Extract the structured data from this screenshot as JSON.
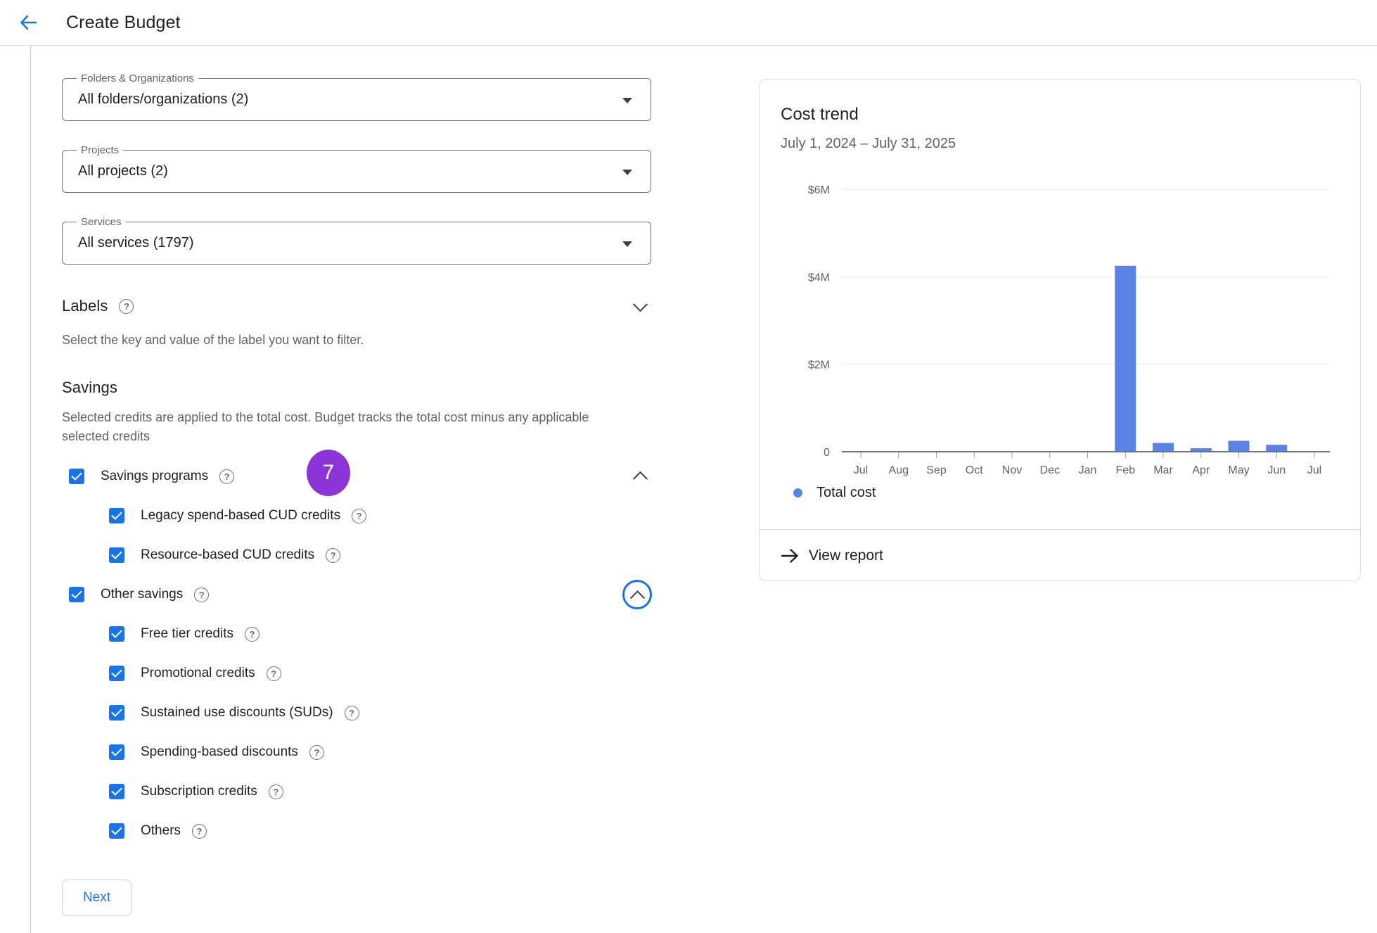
{
  "header": {
    "title": "Create Budget"
  },
  "colors": {
    "accent": "#1a73e8",
    "bar": "#5b82e5",
    "badge": "#8d34d8"
  },
  "icons": {
    "help_glyph": "?"
  },
  "filters": {
    "folders": {
      "label": "Folders & Organizations",
      "value": "All folders/organizations (2)"
    },
    "projects": {
      "label": "Projects",
      "value": "All projects (2)"
    },
    "services": {
      "label": "Services",
      "value": "All services (1797)"
    }
  },
  "labels_section": {
    "heading": "Labels",
    "description": "Select the key and value of the label you want to filter."
  },
  "savings_section": {
    "heading": "Savings",
    "description": "Selected credits are applied to the total cost. Budget tracks the total cost minus any applicable selected credits",
    "badge_count": "7",
    "rows": [
      {
        "label": "Savings programs",
        "checked": true,
        "level": 0
      },
      {
        "label": "Legacy spend-based CUD credits",
        "checked": true,
        "level": 1
      },
      {
        "label": "Resource-based CUD credits",
        "checked": true,
        "level": 1
      },
      {
        "label": "Other savings",
        "checked": true,
        "level": 0
      },
      {
        "label": "Free tier credits",
        "checked": true,
        "level": 1
      },
      {
        "label": "Promotional credits",
        "checked": true,
        "level": 1
      },
      {
        "label": "Sustained use discounts (SUDs)",
        "checked": true,
        "level": 1
      },
      {
        "label": "Spending-based discounts",
        "checked": true,
        "level": 1
      },
      {
        "label": "Subscription credits",
        "checked": true,
        "level": 1
      },
      {
        "label": "Others",
        "checked": true,
        "level": 1
      }
    ]
  },
  "next_button": {
    "label": "Next"
  },
  "chart_card": {
    "title": "Cost trend",
    "subtitle": "July 1, 2024 – July 31, 2025",
    "legend": "Total cost",
    "view_report": "View report"
  },
  "chart_data": {
    "type": "bar",
    "title": "Cost trend",
    "subtitle": "July 1, 2024 – July 31, 2025",
    "categories": [
      "Jul",
      "Aug",
      "Sep",
      "Oct",
      "Nov",
      "Dec",
      "Jan",
      "Feb",
      "Mar",
      "Apr",
      "May",
      "Jun",
      "Jul"
    ],
    "values": [
      0,
      0,
      0,
      0,
      0,
      0,
      0,
      4.25,
      0.2,
      0.08,
      0.25,
      0.16,
      0
    ],
    "unit": "$M",
    "xlabel": "",
    "ylabel": "",
    "ylim": [
      0,
      6
    ],
    "yticks": [
      0,
      2,
      4,
      6
    ],
    "ytick_labels": [
      "0",
      "$2M",
      "$4M",
      "$6M"
    ],
    "grid": true,
    "legend_entries": [
      "Total cost"
    ],
    "legend_position": "bottom"
  }
}
